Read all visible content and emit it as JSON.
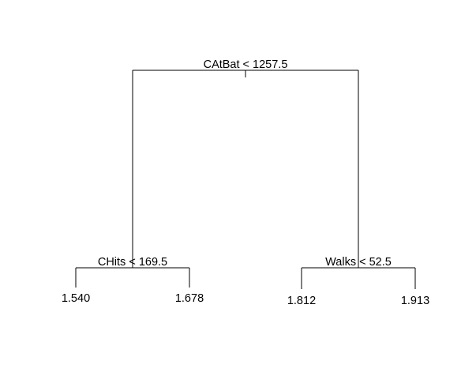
{
  "tree": {
    "root": {
      "split": "CAtBat < 1257.5",
      "left": {
        "split": "CHits < 169.5",
        "left_leaf": "1.540",
        "right_leaf": "1.678"
      },
      "right": {
        "split": "Walks < 52.5",
        "left_leaf": "1.812",
        "right_leaf": "1.913"
      }
    }
  }
}
